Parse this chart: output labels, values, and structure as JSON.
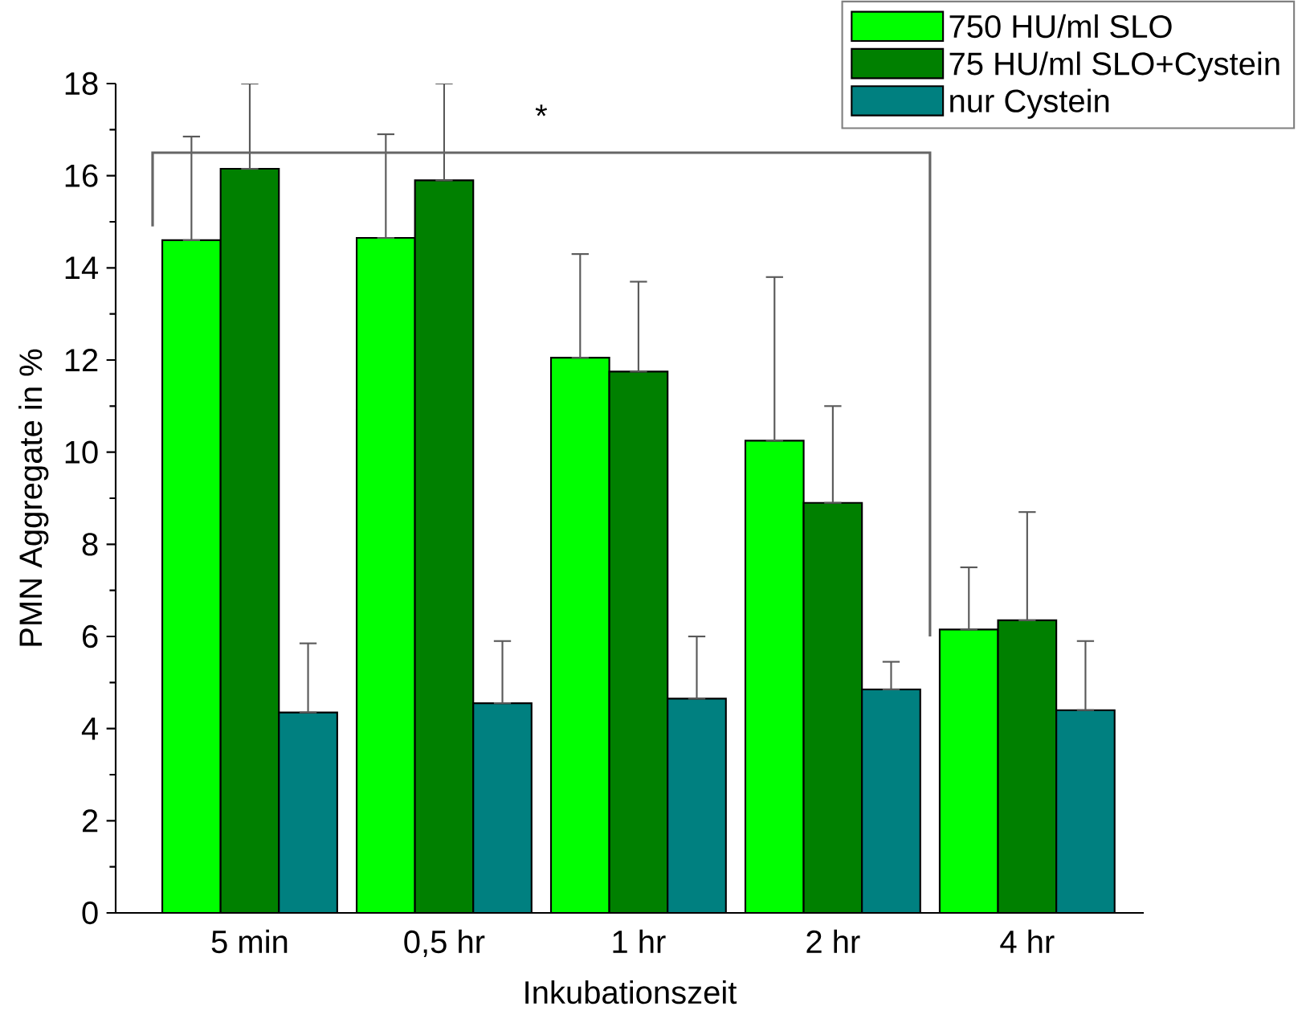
{
  "chart_data": {
    "type": "bar",
    "xlabel": "Inkubationszeit",
    "ylabel": "PMN Aggregate in %",
    "categories": [
      "5 min",
      "0,5 hr",
      "1 hr",
      "2 hr",
      "4 hr"
    ],
    "series": [
      {
        "name": "750 HU/ml SLO",
        "color": "#00ff00",
        "values": [
          14.6,
          14.65,
          12.05,
          10.25,
          6.15
        ],
        "errors": [
          [
            14.6,
            16.85
          ],
          [
            14.65,
            16.9
          ],
          [
            12.05,
            14.3
          ],
          [
            10.25,
            13.8
          ],
          [
            6.15,
            7.5
          ]
        ]
      },
      {
        "name": "75 HU/ml SLO+Cystein",
        "color": "#008000",
        "values": [
          16.15,
          15.9,
          11.75,
          8.9,
          6.35
        ],
        "errors": [
          [
            16.15,
            18
          ],
          [
            15.9,
            18
          ],
          [
            11.75,
            13.7
          ],
          [
            8.9,
            11.0
          ],
          [
            6.35,
            8.7
          ]
        ]
      },
      {
        "name": "nur Cystein",
        "color": "#008080",
        "values": [
          4.35,
          4.55,
          4.65,
          4.85,
          4.4
        ],
        "errors": [
          [
            4.35,
            5.85
          ],
          [
            4.55,
            5.9
          ],
          [
            4.65,
            6.0
          ],
          [
            4.85,
            5.45
          ],
          [
            4.4,
            5.9
          ]
        ]
      }
    ],
    "ylim": [
      0,
      18
    ],
    "yticks": [
      0,
      2,
      4,
      6,
      8,
      10,
      12,
      14,
      16,
      18
    ],
    "grid": false,
    "legend": "top right",
    "annotations": [
      "*"
    ]
  }
}
